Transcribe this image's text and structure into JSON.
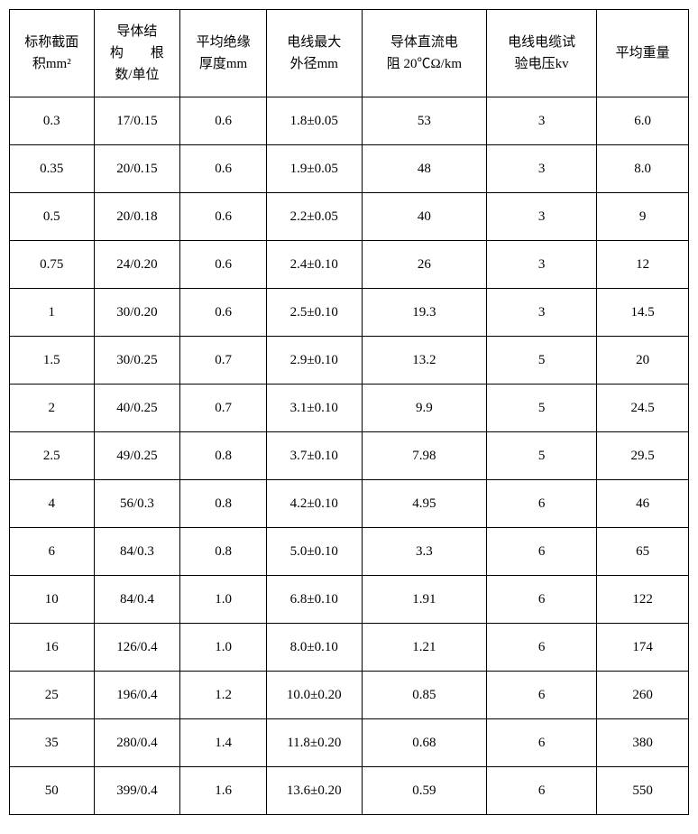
{
  "table": {
    "type": "table",
    "border_color": "#000000",
    "background_color": "#ffffff",
    "text_color": "#000000",
    "font_family": "SimSun",
    "header_fontsize": 15,
    "cell_fontsize": 15,
    "header_row_height": 96,
    "body_row_height": 52,
    "columns": [
      {
        "label_line1": "标称截面",
        "label_line2": "积mm²",
        "width": 92,
        "align": "center"
      },
      {
        "label_line1": "导体结",
        "label_line2": "构　　根",
        "label_line3": "数/单位",
        "width": 94,
        "align": "center"
      },
      {
        "label_line1": "平均绝缘",
        "label_line2": "厚度mm",
        "width": 94,
        "align": "center"
      },
      {
        "label_line1": "电线最大",
        "label_line2": "外径mm",
        "width": 104,
        "align": "center"
      },
      {
        "label_line1": "导体直流电",
        "label_line2": "阻 20℃Ω/km",
        "width": 136,
        "align": "center"
      },
      {
        "label_line1": "电线电缆试",
        "label_line2": "验电压kv",
        "width": 120,
        "align": "center"
      },
      {
        "label_line1": "平均重量",
        "label_line2": "",
        "width": 100,
        "align": "center"
      }
    ],
    "rows": [
      [
        "0.3",
        "17/0.15",
        "0.6",
        "1.8±0.05",
        "53",
        "3",
        "6.0"
      ],
      [
        "0.35",
        "20/0.15",
        "0.6",
        "1.9±0.05",
        "48",
        "3",
        "8.0"
      ],
      [
        "0.5",
        "20/0.18",
        "0.6",
        "2.2±0.05",
        "40",
        "3",
        "9"
      ],
      [
        "0.75",
        "24/0.20",
        "0.6",
        "2.4±0.10",
        "26",
        "3",
        "12"
      ],
      [
        "1",
        "30/0.20",
        "0.6",
        "2.5±0.10",
        "19.3",
        "3",
        "14.5"
      ],
      [
        "1.5",
        "30/0.25",
        "0.7",
        "2.9±0.10",
        "13.2",
        "5",
        "20"
      ],
      [
        "2",
        "40/0.25",
        "0.7",
        "3.1±0.10",
        "9.9",
        "5",
        "24.5"
      ],
      [
        "2.5",
        "49/0.25",
        "0.8",
        "3.7±0.10",
        "7.98",
        "5",
        "29.5"
      ],
      [
        "4",
        "56/0.3",
        "0.8",
        "4.2±0.10",
        "4.95",
        "6",
        "46"
      ],
      [
        "6",
        "84/0.3",
        "0.8",
        "5.0±0.10",
        "3.3",
        "6",
        "65"
      ],
      [
        "10",
        "84/0.4",
        "1.0",
        "6.8±0.10",
        "1.91",
        "6",
        "122"
      ],
      [
        "16",
        "126/0.4",
        "1.0",
        "8.0±0.10",
        "1.21",
        "6",
        "174"
      ],
      [
        "25",
        "196/0.4",
        "1.2",
        "10.0±0.20",
        "0.85",
        "6",
        "260"
      ],
      [
        "35",
        "280/0.4",
        "1.4",
        "11.8±0.20",
        "0.68",
        "6",
        "380"
      ],
      [
        "50",
        "399/0.4",
        "1.6",
        "13.6±0.20",
        "0.59",
        "6",
        "550"
      ]
    ]
  }
}
